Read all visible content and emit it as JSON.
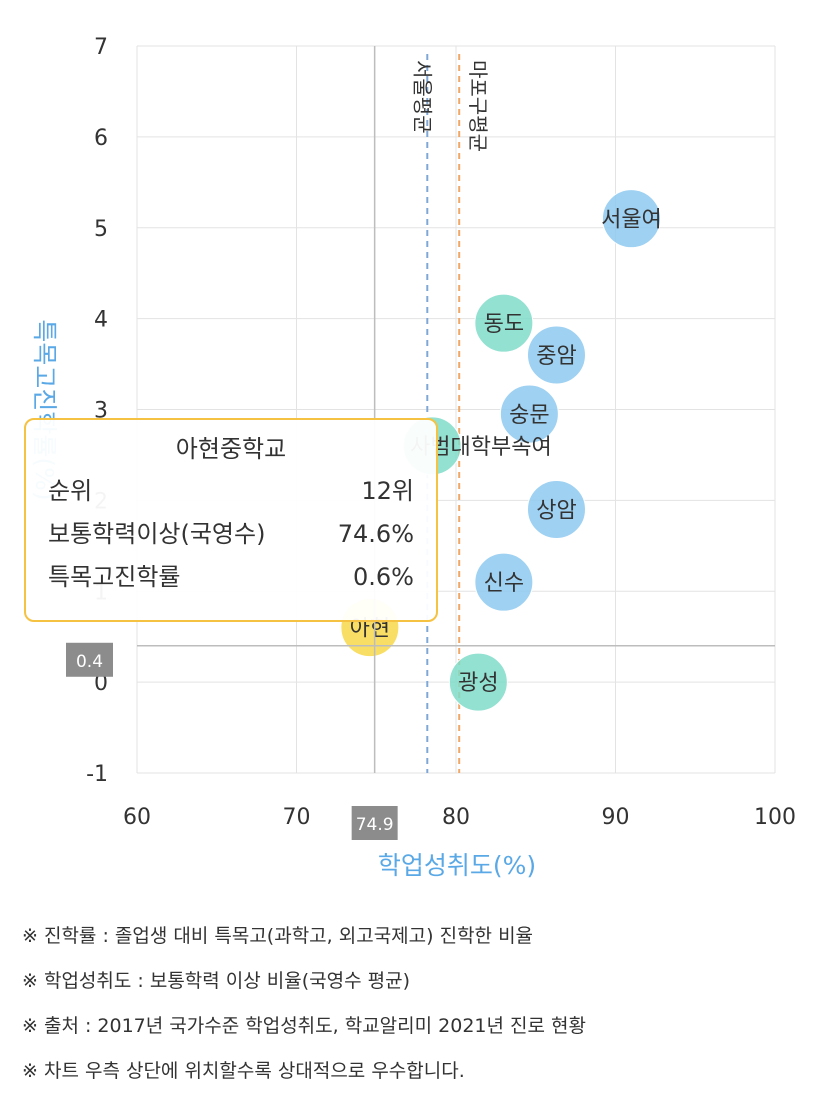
{
  "chart_data": {
    "type": "scatter",
    "xlabel": "학업성취도(%)",
    "ylabel": "특목고진학률(%)",
    "xlim": [
      60,
      100
    ],
    "ylim": [
      -1,
      7
    ],
    "x_ticks": [
      "60",
      "70",
      "80",
      "90",
      "100"
    ],
    "y_ticks": [
      "-1",
      "0",
      "1",
      "2",
      "3",
      "4",
      "5",
      "6",
      "7"
    ],
    "grid": true,
    "reference_lines": [
      {
        "label": "서울평균",
        "x": 78.2,
        "color": "#7fa7d6"
      },
      {
        "label": "마포구평균",
        "x": 80.2,
        "color": "#f0a868"
      }
    ],
    "crosshair": {
      "x": 74.9,
      "y": 0.4,
      "x_label": "74.9",
      "y_label": "0.4"
    },
    "points": [
      {
        "label": "서울여",
        "x": 91.0,
        "y": 5.1,
        "color": "#8ec9f0"
      },
      {
        "label": "동도",
        "x": 83.0,
        "y": 3.95,
        "color": "#7fdcc9"
      },
      {
        "label": "중암",
        "x": 86.3,
        "y": 3.6,
        "color": "#8ec9f0"
      },
      {
        "label": "숭문",
        "x": 84.6,
        "y": 2.95,
        "color": "#8ec9f0"
      },
      {
        "label": "사범대학부속여",
        "x": 78.5,
        "y": 2.6,
        "color": "#7fdcc9"
      },
      {
        "label": "상암",
        "x": 86.3,
        "y": 1.9,
        "color": "#8ec9f0"
      },
      {
        "label": "신수",
        "x": 83.0,
        "y": 1.1,
        "color": "#8ec9f0"
      },
      {
        "label": "광성",
        "x": 81.4,
        "y": 0.0,
        "color": "#7fdcc9"
      },
      {
        "label": "아현",
        "x": 74.6,
        "y": 0.6,
        "color": "#f7d84a"
      }
    ]
  },
  "tooltip": {
    "title": "아현중학교",
    "rows": [
      {
        "label": "순위",
        "value": "12위"
      },
      {
        "label": "보통학력이상(국영수)",
        "value": "74.6%"
      },
      {
        "label": "특목고진학률",
        "value": "0.6%"
      }
    ]
  },
  "notes": [
    "※ 진학률 : 졸업생 대비 특목고(과학고, 외고국제고) 진학한 비율",
    "※ 학업성취도 : 보통학력 이상 비율(국영수 평균)",
    "※ 출처 : 2017년 국가수준 학업성취도, 학교알리미 2021년 진로 현황",
    "※ 차트 우측 상단에 위치할수록 상대적으로 우수합니다."
  ]
}
